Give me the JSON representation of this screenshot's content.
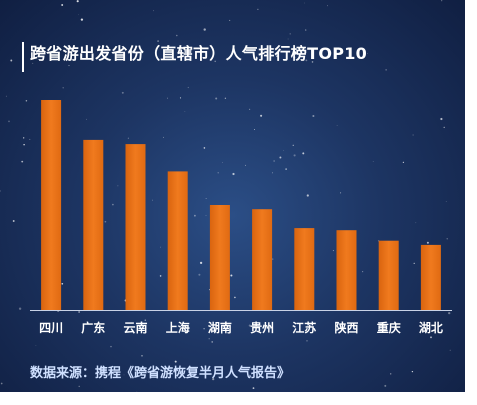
{
  "chart_data": {
    "type": "bar",
    "title": "跨省游出发省份（直辖市）人气排行榜TOP10",
    "categories": [
      "四川",
      "广东",
      "云南",
      "上海",
      "湖南",
      "贵州",
      "江苏",
      "陕西",
      "重庆",
      "湖北"
    ],
    "values": [
      100,
      81,
      79,
      66,
      50,
      48,
      39,
      38,
      33,
      31
    ],
    "ylim": [
      0,
      100
    ],
    "grid": false,
    "bar_color": "#f07a1e",
    "source": "数据来源：携程《跨省游恢复半月人气报告》"
  },
  "colors": {
    "background": "#1d3563",
    "bar": "#f07a1e",
    "axis": "#c8d2e6",
    "text": "#ffffff"
  }
}
